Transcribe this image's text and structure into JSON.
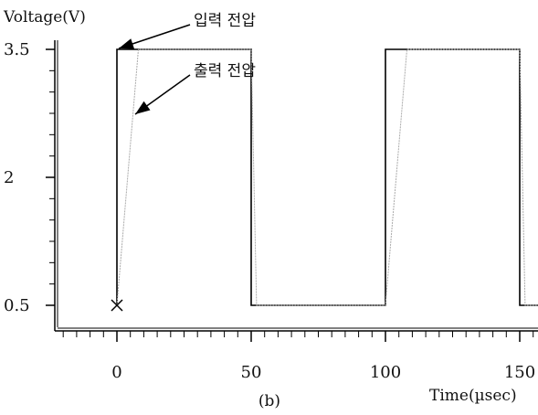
{
  "chart_data": {
    "type": "line",
    "ylabel": "Voltage(V)",
    "xlabel": "Time(µsec)",
    "caption": "(b)",
    "xlim": [
      -22,
      157
    ],
    "ylim": [
      0.3,
      3.6
    ],
    "x_ticks": [
      0,
      50,
      100,
      150
    ],
    "y_ticks": [
      0.5,
      2,
      3.5
    ],
    "series": [
      {
        "label": "입력 전압",
        "color": "#000000",
        "points": [
          [
            0,
            0.5
          ],
          [
            0,
            3.5
          ],
          [
            50,
            3.5
          ],
          [
            50,
            0.5
          ],
          [
            100,
            0.5
          ],
          [
            100,
            3.5
          ],
          [
            150,
            3.5
          ],
          [
            150,
            0.5
          ],
          [
            157,
            0.5
          ]
        ]
      },
      {
        "label": "출력 전압",
        "color": "#aaaaaa",
        "points": [
          [
            0,
            0.5
          ],
          [
            8,
            3.5
          ],
          [
            50,
            3.5
          ],
          [
            52,
            0.5
          ],
          [
            100,
            0.5
          ],
          [
            108,
            3.5
          ],
          [
            150,
            3.5
          ],
          [
            152,
            0.5
          ],
          [
            157,
            0.5
          ]
        ]
      }
    ],
    "start_marker": {
      "x": 0,
      "y": 0.5,
      "symbol": "×"
    }
  }
}
